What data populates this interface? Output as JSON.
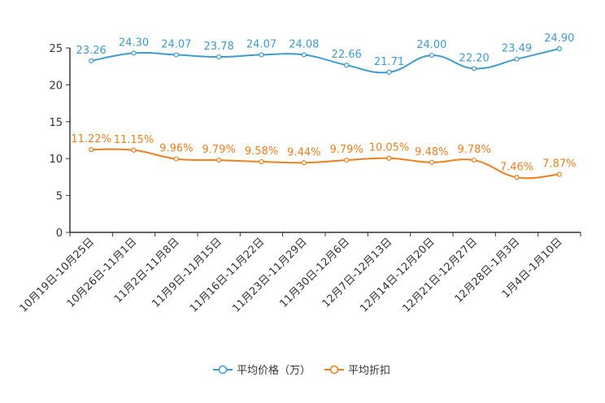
{
  "chart_data": {
    "type": "line",
    "title": "",
    "xlabel": "",
    "ylabel": "",
    "ylim": [
      0,
      25
    ],
    "yticks": [
      0,
      5,
      10,
      15,
      20,
      25
    ],
    "grid": false,
    "legend_position": "bottom",
    "categories": [
      "10月19日-10月25日",
      "10月26日-11月1日",
      "11月2日-11月8日",
      "11月9日-11月15日",
      "11月16日-11月22日",
      "11月23日-11月29日",
      "11月30日-12月6日",
      "12月7日-12月13日",
      "12月14日-12月20日",
      "12月21日-12月27日",
      "12月28日-1月3日",
      "1月4日-1月10日"
    ],
    "series": [
      {
        "name": "平均价格（万）",
        "color": "#3d9ccf",
        "values": [
          23.26,
          24.3,
          24.07,
          23.78,
          24.07,
          24.08,
          22.66,
          21.71,
          24.0,
          22.2,
          23.49,
          24.9
        ],
        "labels": [
          "23.26",
          "24.30",
          "24.07",
          "23.78",
          "24.07",
          "24.08",
          "22.66",
          "21.71",
          "24.00",
          "22.20",
          "23.49",
          "24.90"
        ]
      },
      {
        "name": "平均折扣",
        "color": "#f07f1c",
        "values": [
          11.22,
          11.15,
          9.96,
          9.79,
          9.58,
          9.44,
          9.79,
          10.05,
          9.48,
          9.78,
          7.46,
          7.87
        ],
        "labels": [
          "11.22%",
          "11.15%",
          "9.96%",
          "9.79%",
          "9.58%",
          "9.44%",
          "9.79%",
          "10.05%",
          "9.48%",
          "9.78%",
          "7.46%",
          "7.87%"
        ]
      }
    ]
  }
}
